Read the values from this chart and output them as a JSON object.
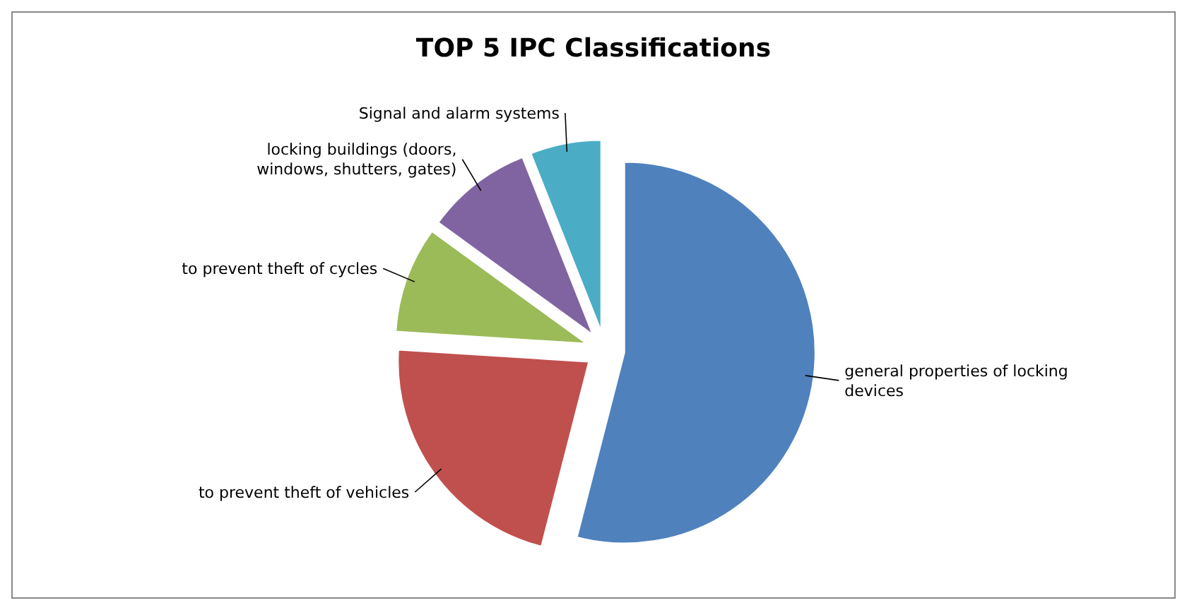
{
  "chart_data": {
    "type": "pie",
    "title": "TOP 5 IPC Classifications",
    "categories": [
      "general properties of locking devices",
      "to prevent theft of vehicles",
      "to prevent theft of cycles",
      "locking buildings (doors, windows, shutters, gates)",
      "Signal and alarm systems"
    ],
    "values": [
      54,
      22,
      9,
      9,
      6
    ],
    "colors": [
      "#4f81bd",
      "#c0504d",
      "#9bbb59",
      "#8064a2",
      "#4bacc6"
    ]
  }
}
